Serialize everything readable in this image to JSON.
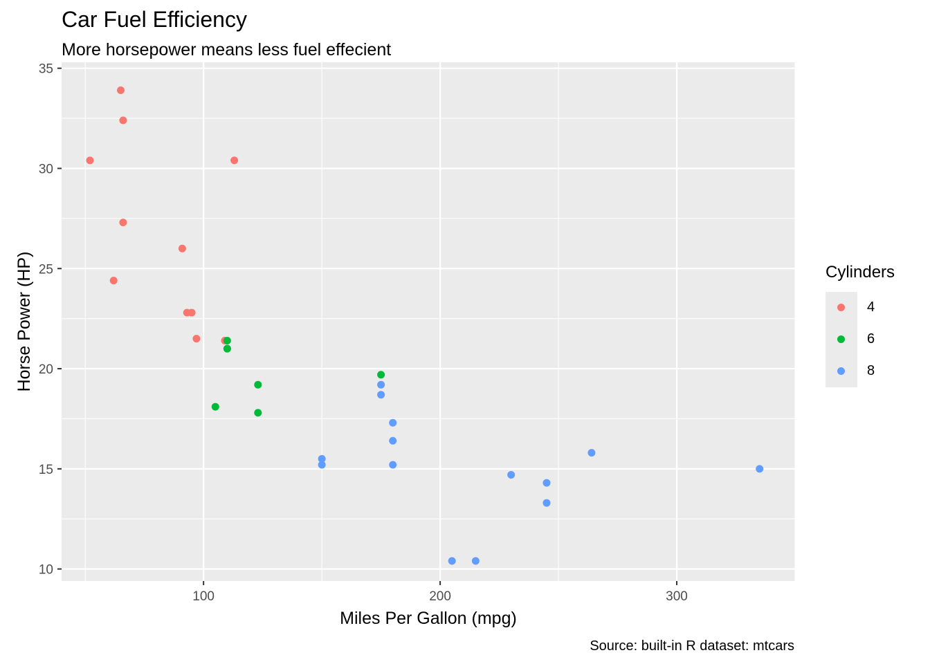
{
  "chart_data": {
    "type": "scatter",
    "title": "Car Fuel Efficiency",
    "subtitle": "More horsepower means less fuel effecient",
    "xlabel": "Miles Per Gallon (mpg)",
    "ylabel": "Horse Power (HP)",
    "caption": "Source: built-in R dataset: mtcars",
    "xlim": [
      40,
      350
    ],
    "ylim": [
      9.4,
      35.3
    ],
    "xticks": [
      100,
      200,
      300
    ],
    "yticks": [
      10,
      15,
      20,
      25,
      30,
      35
    ],
    "grid": true,
    "legend": {
      "title": "Cylinders",
      "placement": "right",
      "entries": [
        "4",
        "6",
        "8"
      ]
    },
    "series": [
      {
        "name": "4",
        "color": "#F8766D",
        "points": [
          [
            93,
            22.8
          ],
          [
            62,
            24.4
          ],
          [
            95,
            22.8
          ],
          [
            66,
            32.4
          ],
          [
            52,
            30.4
          ],
          [
            65,
            33.9
          ],
          [
            97,
            21.5
          ],
          [
            66,
            27.3
          ],
          [
            91,
            26.0
          ],
          [
            113,
            30.4
          ],
          [
            109,
            21.4
          ]
        ]
      },
      {
        "name": "6",
        "color": "#00BA38",
        "points": [
          [
            110,
            21.0
          ],
          [
            110,
            21.0
          ],
          [
            110,
            21.4
          ],
          [
            105,
            18.1
          ],
          [
            123,
            19.2
          ],
          [
            123,
            17.8
          ],
          [
            175,
            19.7
          ]
        ]
      },
      {
        "name": "8",
        "color": "#619CFF",
        "points": [
          [
            175,
            18.7
          ],
          [
            245,
            14.3
          ],
          [
            180,
            16.4
          ],
          [
            180,
            17.3
          ],
          [
            180,
            15.2
          ],
          [
            205,
            10.4
          ],
          [
            215,
            10.4
          ],
          [
            230,
            14.7
          ],
          [
            150,
            15.5
          ],
          [
            150,
            15.2
          ],
          [
            245,
            13.3
          ],
          [
            175,
            19.2
          ],
          [
            264,
            15.8
          ],
          [
            335,
            15.0
          ]
        ]
      }
    ]
  }
}
